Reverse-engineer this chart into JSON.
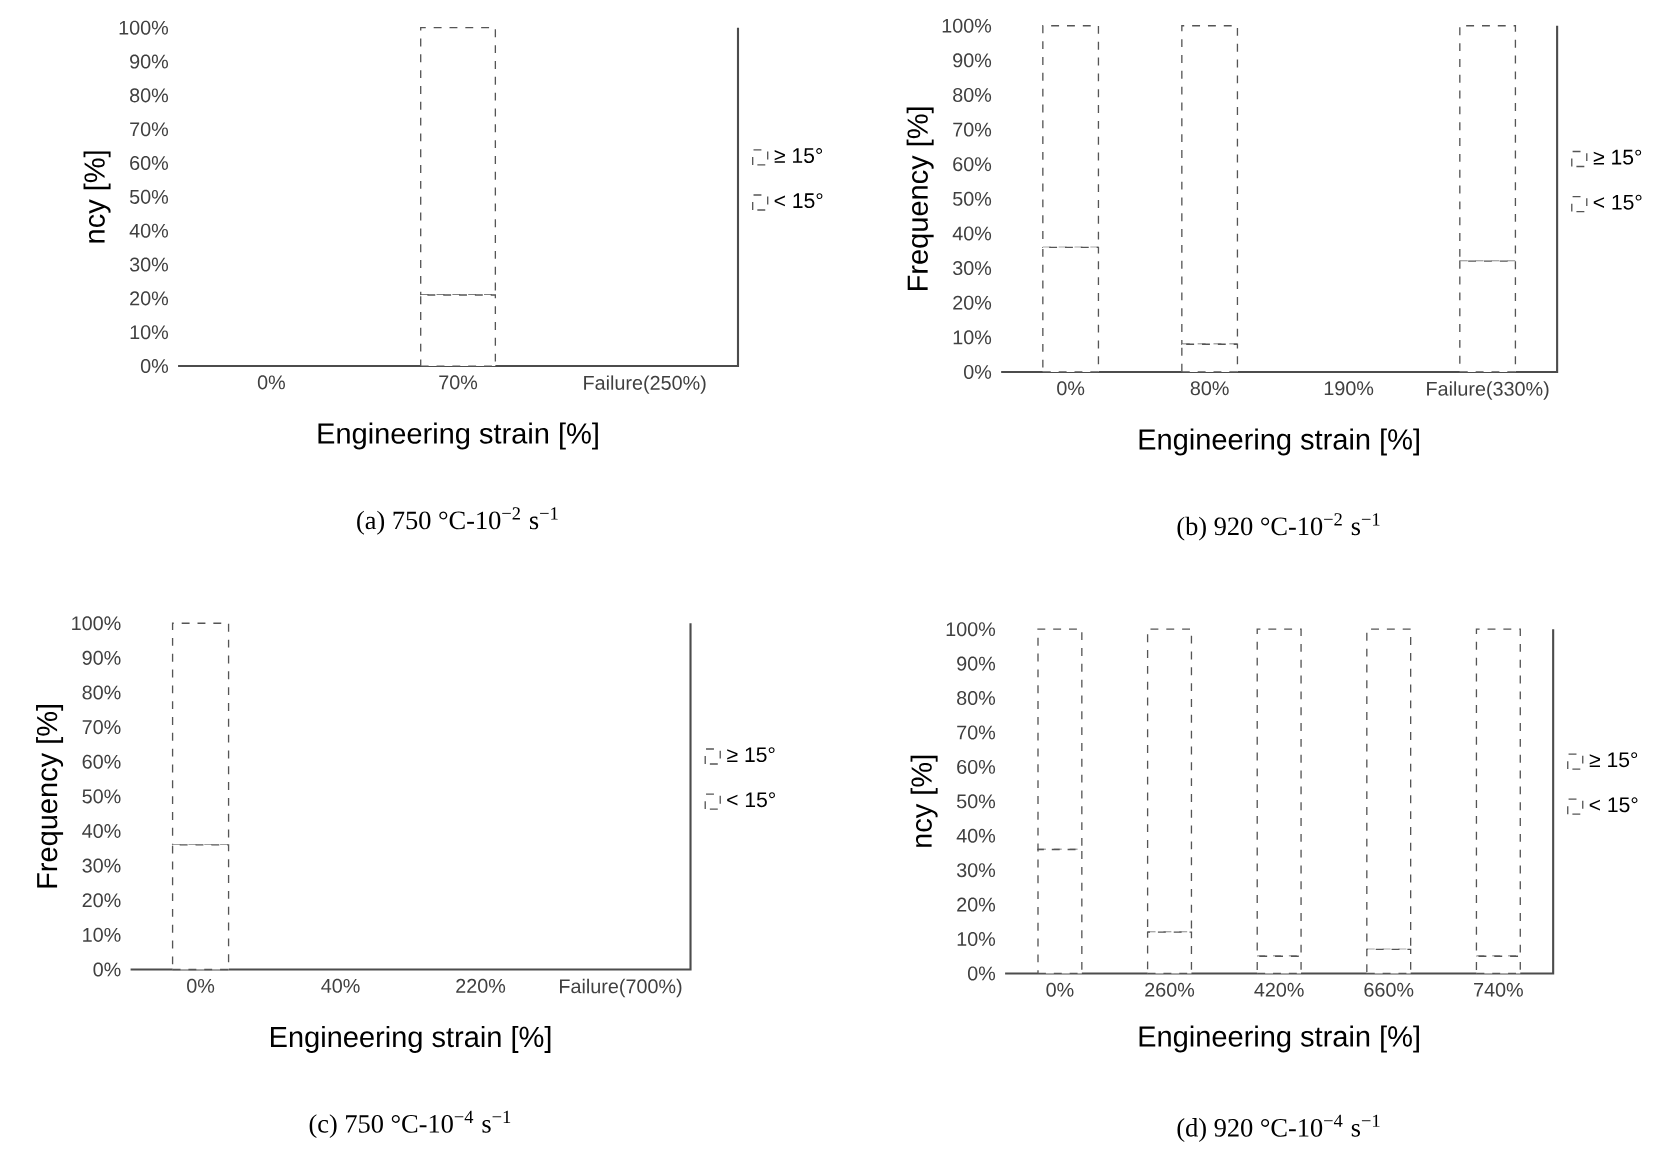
{
  "chart_data": [
    {
      "type": "bar",
      "stacked": true,
      "title": "(a) 750 °C-10$^{−2}$ s$^{−1}$",
      "xlabel": "Engineering strain [%]",
      "ylabel": "ncy [%]",
      "categories": [
        "0%",
        "70%",
        "Failure(250%)"
      ],
      "series": [
        {
          "name": "< 15°",
          "color": "#555555",
          "values": [
            null,
            21,
            null
          ]
        },
        {
          "name": "≥ 15°",
          "color": "#555555",
          "values": [
            null,
            79,
            null
          ]
        }
      ],
      "ylim": [
        0,
        100
      ],
      "yticks": [
        {
          "value": 0,
          "label": "0%"
        },
        {
          "value": 10,
          "label": "10%"
        },
        {
          "value": 20,
          "label": "20%"
        },
        {
          "value": 30,
          "label": "30%"
        },
        {
          "value": 40,
          "label": "40%"
        },
        {
          "value": 50,
          "label": "50%"
        },
        {
          "value": 60,
          "label": "60%"
        },
        {
          "value": 70,
          "label": "70%"
        },
        {
          "value": 80,
          "label": "80%"
        },
        {
          "value": 90,
          "label": "90%"
        },
        {
          "value": 100,
          "label": "100%"
        }
      ],
      "legend": "right",
      "line_style": "dashed"
    },
    {
      "type": "bar",
      "stacked": true,
      "title": "(b) 920 °C-10$^{−2}$ s$^{−1}$",
      "xlabel": "Engineering strain [%]",
      "ylabel": "Frequency [%]",
      "categories": [
        "0%",
        "80%",
        "190%",
        "Failure(330%)"
      ],
      "series": [
        {
          "name": "< 15°",
          "color": "#555555",
          "values": [
            36,
            8,
            null,
            32
          ]
        },
        {
          "name": "≥ 15°",
          "color": "#555555",
          "values": [
            64,
            92,
            null,
            68
          ]
        }
      ],
      "ylim": [
        0,
        100
      ],
      "yticks": [
        {
          "value": 0,
          "label": "0%"
        },
        {
          "value": 10,
          "label": "10%"
        },
        {
          "value": 20,
          "label": "20%"
        },
        {
          "value": 30,
          "label": "30%"
        },
        {
          "value": 40,
          "label": "40%"
        },
        {
          "value": 50,
          "label": "50%"
        },
        {
          "value": 60,
          "label": "60%"
        },
        {
          "value": 70,
          "label": "70%"
        },
        {
          "value": 80,
          "label": "80%"
        },
        {
          "value": 90,
          "label": "90%"
        },
        {
          "value": 100,
          "label": "100%"
        }
      ],
      "legend": "right",
      "line_style": "dashed"
    },
    {
      "type": "bar",
      "stacked": true,
      "title": "(c) 750 °C-10$^{−4}$ s$^{−1}$",
      "xlabel": "Engineering strain [%]",
      "ylabel": "Frequency [%]",
      "categories": [
        "0%",
        "40%",
        "220%",
        "Failure(700%)"
      ],
      "series": [
        {
          "name": "< 15°",
          "color": "#555555",
          "values": [
            36,
            null,
            null,
            null
          ]
        },
        {
          "name": "≥ 15°",
          "color": "#555555",
          "values": [
            64,
            null,
            null,
            null
          ]
        }
      ],
      "ylim": [
        0,
        100
      ],
      "yticks": [
        {
          "value": 0,
          "label": "0%"
        },
        {
          "value": 10,
          "label": "10%"
        },
        {
          "value": 20,
          "label": "20%"
        },
        {
          "value": 30,
          "label": "30%"
        },
        {
          "value": 40,
          "label": "40%"
        },
        {
          "value": 50,
          "label": "50%"
        },
        {
          "value": 60,
          "label": "60%"
        },
        {
          "value": 70,
          "label": "70%"
        },
        {
          "value": 80,
          "label": "80%"
        },
        {
          "value": 90,
          "label": "90%"
        },
        {
          "value": 100,
          "label": "100%"
        }
      ],
      "legend": "right",
      "line_style": "dashed"
    },
    {
      "type": "bar",
      "stacked": true,
      "title": "(d) 920 °C-10$^{−4}$ s$^{−1}$",
      "xlabel": "Engineering strain [%]",
      "ylabel": "ncy [%]",
      "categories": [
        "0%",
        "260%",
        "420%",
        "660%",
        "740%"
      ],
      "series": [
        {
          "name": "< 15°",
          "color": "#555555",
          "values": [
            36,
            12,
            5,
            7,
            5
          ]
        },
        {
          "name": "≥ 15°",
          "color": "#555555",
          "values": [
            64,
            88,
            95,
            93,
            95
          ]
        }
      ],
      "ylim": [
        0,
        100
      ],
      "yticks": [
        {
          "value": 0,
          "label": "0%"
        },
        {
          "value": 10,
          "label": "10%"
        },
        {
          "value": 20,
          "label": "20%"
        },
        {
          "value": 30,
          "label": "30%"
        },
        {
          "value": 40,
          "label": "40%"
        },
        {
          "value": 50,
          "label": "50%"
        },
        {
          "value": 60,
          "label": "60%"
        },
        {
          "value": 70,
          "label": "70%"
        },
        {
          "value": 80,
          "label": "80%"
        },
        {
          "value": 90,
          "label": "90%"
        },
        {
          "value": 100,
          "label": "100%"
        }
      ],
      "legend": "right",
      "line_style": "dashed"
    }
  ]
}
